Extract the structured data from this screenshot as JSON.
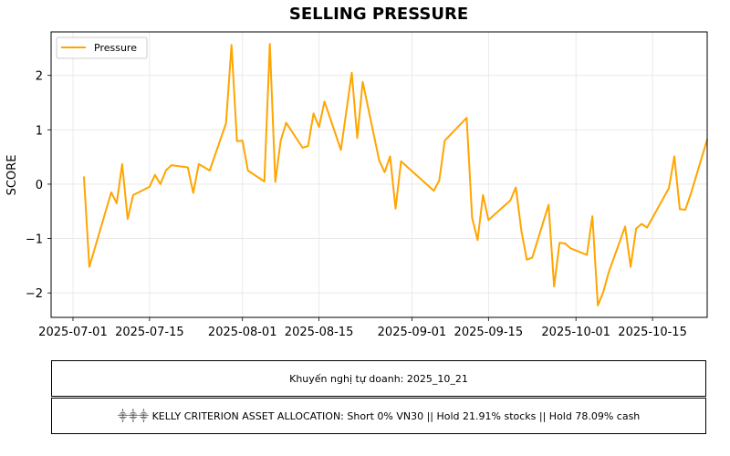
{
  "chart_data": {
    "type": "line",
    "title": "SELLING PRESSURE",
    "xlabel": "",
    "ylabel": "SCORE",
    "xlim": [
      "2025-06-27",
      "2025-10-25"
    ],
    "ylim": [
      -2.45,
      2.8
    ],
    "x_ticks": [
      "2025-07-01",
      "2025-07-15",
      "2025-08-01",
      "2025-08-15",
      "2025-09-01",
      "2025-09-15",
      "2025-10-01",
      "2025-10-15"
    ],
    "y_ticks": [
      -2,
      -1,
      0,
      1,
      2
    ],
    "y_tick_labels": [
      "−2",
      "−1",
      "0",
      "1",
      "2"
    ],
    "grid": true,
    "legend_position": "top-left",
    "series": [
      {
        "name": "Pressure",
        "color": "#ffa500",
        "points": [
          [
            "2025-07-03",
            0.13
          ],
          [
            "2025-07-04",
            -1.52
          ],
          [
            "2025-07-08",
            -0.15
          ],
          [
            "2025-07-09",
            -0.35
          ],
          [
            "2025-07-10",
            0.37
          ],
          [
            "2025-07-11",
            -0.64
          ],
          [
            "2025-07-12",
            -0.2
          ],
          [
            "2025-07-14",
            -0.1
          ],
          [
            "2025-07-15",
            -0.05
          ],
          [
            "2025-07-16",
            0.17
          ],
          [
            "2025-07-17",
            0.0
          ],
          [
            "2025-07-18",
            0.25
          ],
          [
            "2025-07-19",
            0.35
          ],
          [
            "2025-07-22",
            0.31
          ],
          [
            "2025-07-23",
            -0.16
          ],
          [
            "2025-07-24",
            0.37
          ],
          [
            "2025-07-26",
            0.25
          ],
          [
            "2025-07-29",
            1.12
          ],
          [
            "2025-07-30",
            2.56
          ],
          [
            "2025-07-31",
            0.79
          ],
          [
            "2025-08-01",
            0.8
          ],
          [
            "2025-08-02",
            0.25
          ],
          [
            "2025-08-05",
            0.05
          ],
          [
            "2025-08-06",
            2.58
          ],
          [
            "2025-08-07",
            0.04
          ],
          [
            "2025-08-08",
            0.8
          ],
          [
            "2025-08-09",
            1.13
          ],
          [
            "2025-08-12",
            0.67
          ],
          [
            "2025-08-13",
            0.7
          ],
          [
            "2025-08-14",
            1.3
          ],
          [
            "2025-08-15",
            1.05
          ],
          [
            "2025-08-16",
            1.52
          ],
          [
            "2025-08-19",
            0.63
          ],
          [
            "2025-08-21",
            2.05
          ],
          [
            "2025-08-22",
            0.85
          ],
          [
            "2025-08-23",
            1.88
          ],
          [
            "2025-08-26",
            0.44
          ],
          [
            "2025-08-27",
            0.22
          ],
          [
            "2025-08-28",
            0.51
          ],
          [
            "2025-08-29",
            -0.45
          ],
          [
            "2025-08-30",
            0.42
          ],
          [
            "2025-09-05",
            -0.12
          ],
          [
            "2025-09-06",
            0.07
          ],
          [
            "2025-09-07",
            0.8
          ],
          [
            "2025-09-11",
            1.22
          ],
          [
            "2025-09-12",
            -0.62
          ],
          [
            "2025-09-13",
            -1.03
          ],
          [
            "2025-09-14",
            -0.2
          ],
          [
            "2025-09-15",
            -0.66
          ],
          [
            "2025-09-19",
            -0.3
          ],
          [
            "2025-09-20",
            -0.06
          ],
          [
            "2025-09-21",
            -0.85
          ],
          [
            "2025-09-22",
            -1.39
          ],
          [
            "2025-09-23",
            -1.35
          ],
          [
            "2025-09-26",
            -0.38
          ],
          [
            "2025-09-27",
            -1.88
          ],
          [
            "2025-09-28",
            -1.08
          ],
          [
            "2025-09-29",
            -1.09
          ],
          [
            "2025-09-30",
            -1.18
          ],
          [
            "2025-10-03",
            -1.3
          ],
          [
            "2025-10-04",
            -0.59
          ],
          [
            "2025-10-05",
            -2.23
          ],
          [
            "2025-10-06",
            -1.98
          ],
          [
            "2025-10-07",
            -1.62
          ],
          [
            "2025-10-10",
            -0.78
          ],
          [
            "2025-10-11",
            -1.52
          ],
          [
            "2025-10-12",
            -0.82
          ],
          [
            "2025-10-13",
            -0.73
          ],
          [
            "2025-10-14",
            -0.8
          ],
          [
            "2025-10-18",
            -0.07
          ],
          [
            "2025-10-19",
            0.51
          ],
          [
            "2025-10-20",
            -0.46
          ],
          [
            "2025-10-21",
            -0.47
          ],
          [
            "2025-10-22",
            -0.18
          ],
          [
            "2025-10-25",
            0.82
          ]
        ]
      }
    ],
    "legend": [
      {
        "label": "Pressure",
        "color": "#ffa500"
      }
    ]
  },
  "captions": {
    "recommendation": "Khuyến nghị tự doanh: 2025_10_21",
    "allocation": "⸎⸎⸎ KELLY CRITERION ASSET ALLOCATION: Short 0% VN30 || Hold 21.91% stocks || Hold 78.09% cash"
  }
}
